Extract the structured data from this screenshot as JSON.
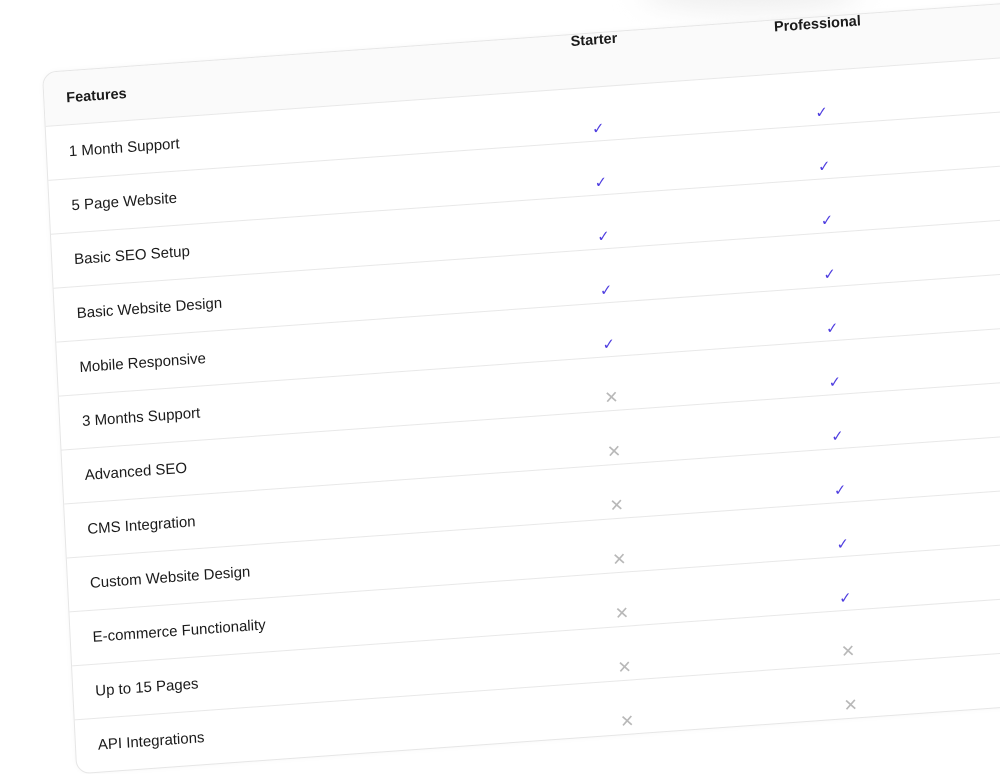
{
  "colors": {
    "check": "#4f3ee0",
    "cross": "#b8b8b8",
    "header_bg": "#fafafa"
  },
  "table": {
    "header": {
      "features": "Features",
      "plans": [
        "Starter",
        "Professional"
      ]
    },
    "icons": {
      "yes": "✓",
      "no": "✕"
    },
    "rows": [
      {
        "feature": "1 Month Support",
        "starter": true,
        "professional": true
      },
      {
        "feature": "5 Page Website",
        "starter": true,
        "professional": true
      },
      {
        "feature": "Basic SEO Setup",
        "starter": true,
        "professional": true
      },
      {
        "feature": "Basic Website Design",
        "starter": true,
        "professional": true
      },
      {
        "feature": "Mobile Responsive",
        "starter": true,
        "professional": true
      },
      {
        "feature": "3 Months Support",
        "starter": false,
        "professional": true
      },
      {
        "feature": "Advanced SEO",
        "starter": false,
        "professional": true
      },
      {
        "feature": "CMS Integration",
        "starter": false,
        "professional": true
      },
      {
        "feature": "Custom Website Design",
        "starter": false,
        "professional": true
      },
      {
        "feature": "E-commerce Functionality",
        "starter": false,
        "professional": true
      },
      {
        "feature": "Up to 15 Pages",
        "starter": false,
        "professional": false
      },
      {
        "feature": "API Integrations",
        "starter": false,
        "professional": false
      }
    ]
  }
}
